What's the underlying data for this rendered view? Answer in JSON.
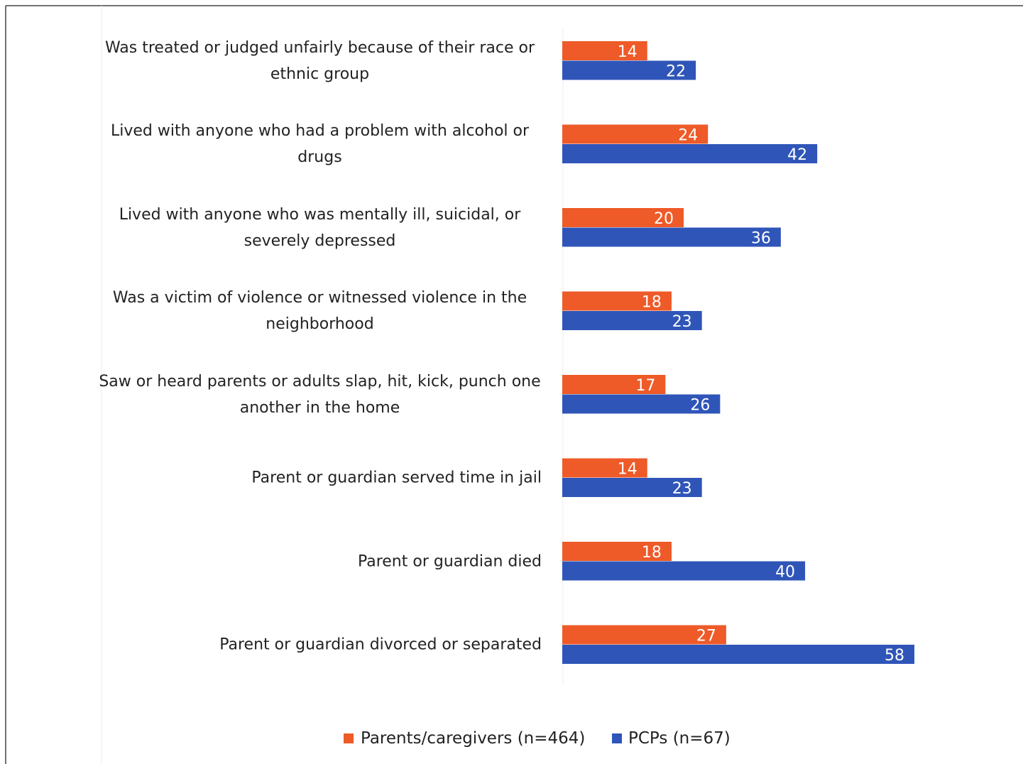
{
  "chart_data": {
    "type": "bar",
    "orientation": "horizontal",
    "categories": [
      "Was treated or judged unfairly because of their race or ethnic group",
      "Lived with anyone who had a problem with alcohol or drugs",
      "Lived with anyone who was mentally ill, suicidal, or severely depressed",
      "Was a victim of violence or witnessed violence in the neighborhood",
      "Saw or heard parents or adults slap, hit, kick, punch one another in the home",
      "Parent or guardian served time in jail",
      "Parent or guardian died",
      "Parent or guardian divorced or separated"
    ],
    "series": [
      {
        "name": "Parents/caregivers (n=464)",
        "color": "#ee5a28",
        "values": [
          14,
          24,
          20,
          18,
          17,
          14,
          18,
          27
        ]
      },
      {
        "name": "PCPs (n=67)",
        "color": "#2f55b8",
        "values": [
          22,
          42,
          36,
          23,
          26,
          23,
          40,
          58
        ]
      }
    ],
    "legend": "bottom"
  }
}
